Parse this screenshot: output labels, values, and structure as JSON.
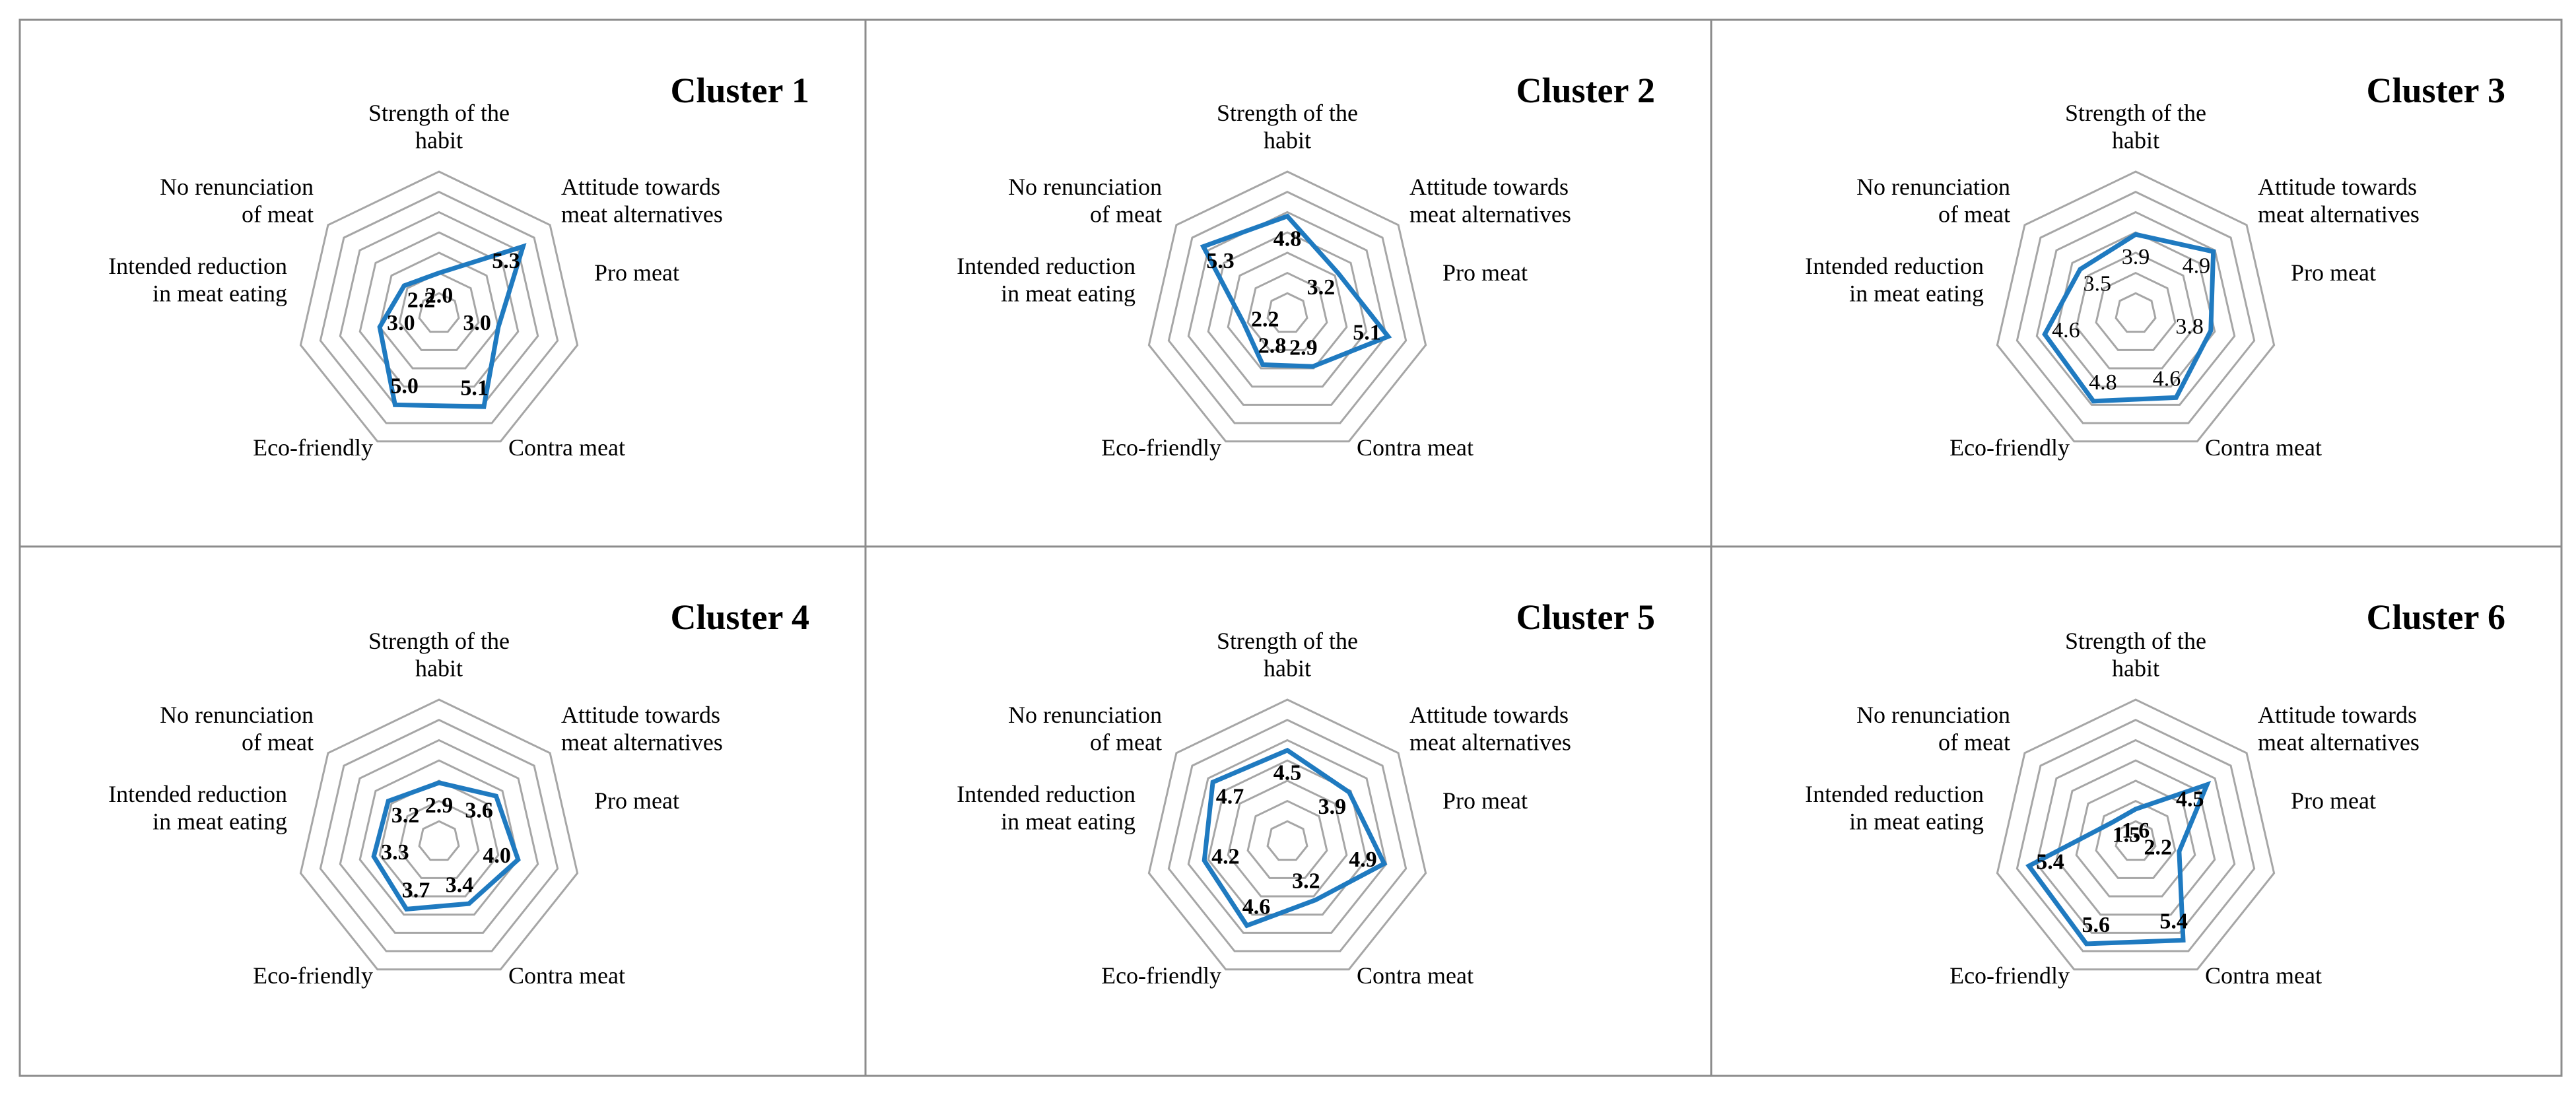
{
  "colors": {
    "series": "#1f7ac0",
    "grid": "#a6a6a6",
    "border": "#8c8c8c",
    "text": "#000000"
  },
  "chart_data": [
    {
      "type": "radar",
      "title": "Cluster 1",
      "value_label_weight": "bold",
      "axis_min": 0,
      "axis_max": 7,
      "grid_levels": 7,
      "grid": true,
      "categories": [
        "Strength of the habit",
        "Attitude towards meat alternatives",
        "Pro meat",
        "Contra meat",
        "Eco-friendly",
        "Intended reduction in meat eating",
        "No renunciation of meat"
      ],
      "values": [
        2.0,
        5.3,
        3.0,
        5.1,
        5.0,
        3.0,
        2.2
      ],
      "value_labels": [
        "2.0",
        "5.3",
        "3.0",
        "5.1",
        "5.0",
        "3.0",
        "2.2"
      ]
    },
    {
      "type": "radar",
      "title": "Cluster 2",
      "value_label_weight": "bold",
      "axis_min": 0,
      "axis_max": 7,
      "grid_levels": 7,
      "grid": true,
      "categories": [
        "Strength of the habit",
        "Attitude towards meat alternatives",
        "Pro meat",
        "Contra meat",
        "Eco-friendly",
        "Intended reduction in meat eating",
        "No renunciation of meat"
      ],
      "values": [
        4.8,
        3.2,
        5.1,
        2.9,
        2.8,
        2.2,
        5.3
      ],
      "value_labels": [
        "4.8",
        "3.2",
        "5.1",
        "2.9",
        "2.8",
        "2.2",
        "5.3"
      ]
    },
    {
      "type": "radar",
      "title": "Cluster 3",
      "value_label_weight": "normal",
      "axis_min": 0,
      "axis_max": 7,
      "grid_levels": 7,
      "grid": true,
      "categories": [
        "Strength of the habit",
        "Attitude towards meat alternatives",
        "Pro meat",
        "Contra meat",
        "Eco-friendly",
        "Intended reduction in meat eating",
        "No renunciation of meat"
      ],
      "values": [
        3.9,
        4.9,
        3.8,
        4.6,
        4.8,
        4.6,
        3.5
      ],
      "value_labels": [
        "3.9",
        "4.9",
        "3.8",
        "4.6",
        "4.8",
        "4.6",
        "3.5"
      ]
    },
    {
      "type": "radar",
      "title": "Cluster 4",
      "value_label_weight": "bold",
      "axis_min": 0,
      "axis_max": 7,
      "grid_levels": 7,
      "grid": true,
      "categories": [
        "Strength of the habit",
        "Attitude towards meat alternatives",
        "Pro meat",
        "Contra meat",
        "Eco-friendly",
        "Intended reduction in meat eating",
        "No renunciation of meat"
      ],
      "values": [
        2.9,
        3.6,
        4.0,
        3.4,
        3.7,
        3.3,
        3.2
      ],
      "value_labels": [
        "2.9",
        "3.6",
        "4.0",
        "3.4",
        "3.7",
        "3.3",
        "3.2"
      ]
    },
    {
      "type": "radar",
      "title": "Cluster 5",
      "value_label_weight": "bold",
      "axis_min": 0,
      "axis_max": 7,
      "grid_levels": 7,
      "grid": true,
      "categories": [
        "Strength of the habit",
        "Attitude towards meat alternatives",
        "Pro meat",
        "Contra meat",
        "Eco-friendly",
        "Intended reduction in meat eating",
        "No renunciation of meat"
      ],
      "values": [
        4.5,
        3.9,
        4.9,
        3.2,
        4.6,
        4.2,
        4.7
      ],
      "value_labels": [
        "4.5",
        "3.9",
        "4.9",
        "3.2",
        "4.6",
        "4.2",
        "4.7"
      ]
    },
    {
      "type": "radar",
      "title": "Cluster 6",
      "value_label_weight": "bold",
      "axis_min": 0,
      "axis_max": 7,
      "grid_levels": 7,
      "grid": true,
      "categories": [
        "Strength of the habit",
        "Attitude towards meat alternatives",
        "Pro meat",
        "Contra meat",
        "Eco-friendly",
        "Intended reduction in meat eating",
        "No renunciation of meat"
      ],
      "values": [
        1.6,
        4.5,
        2.2,
        5.4,
        5.6,
        5.4,
        1.5
      ],
      "value_labels": [
        "1.6",
        "4.5",
        "2.2",
        "5.4",
        "5.6",
        "5.4",
        "1.5"
      ]
    }
  ]
}
